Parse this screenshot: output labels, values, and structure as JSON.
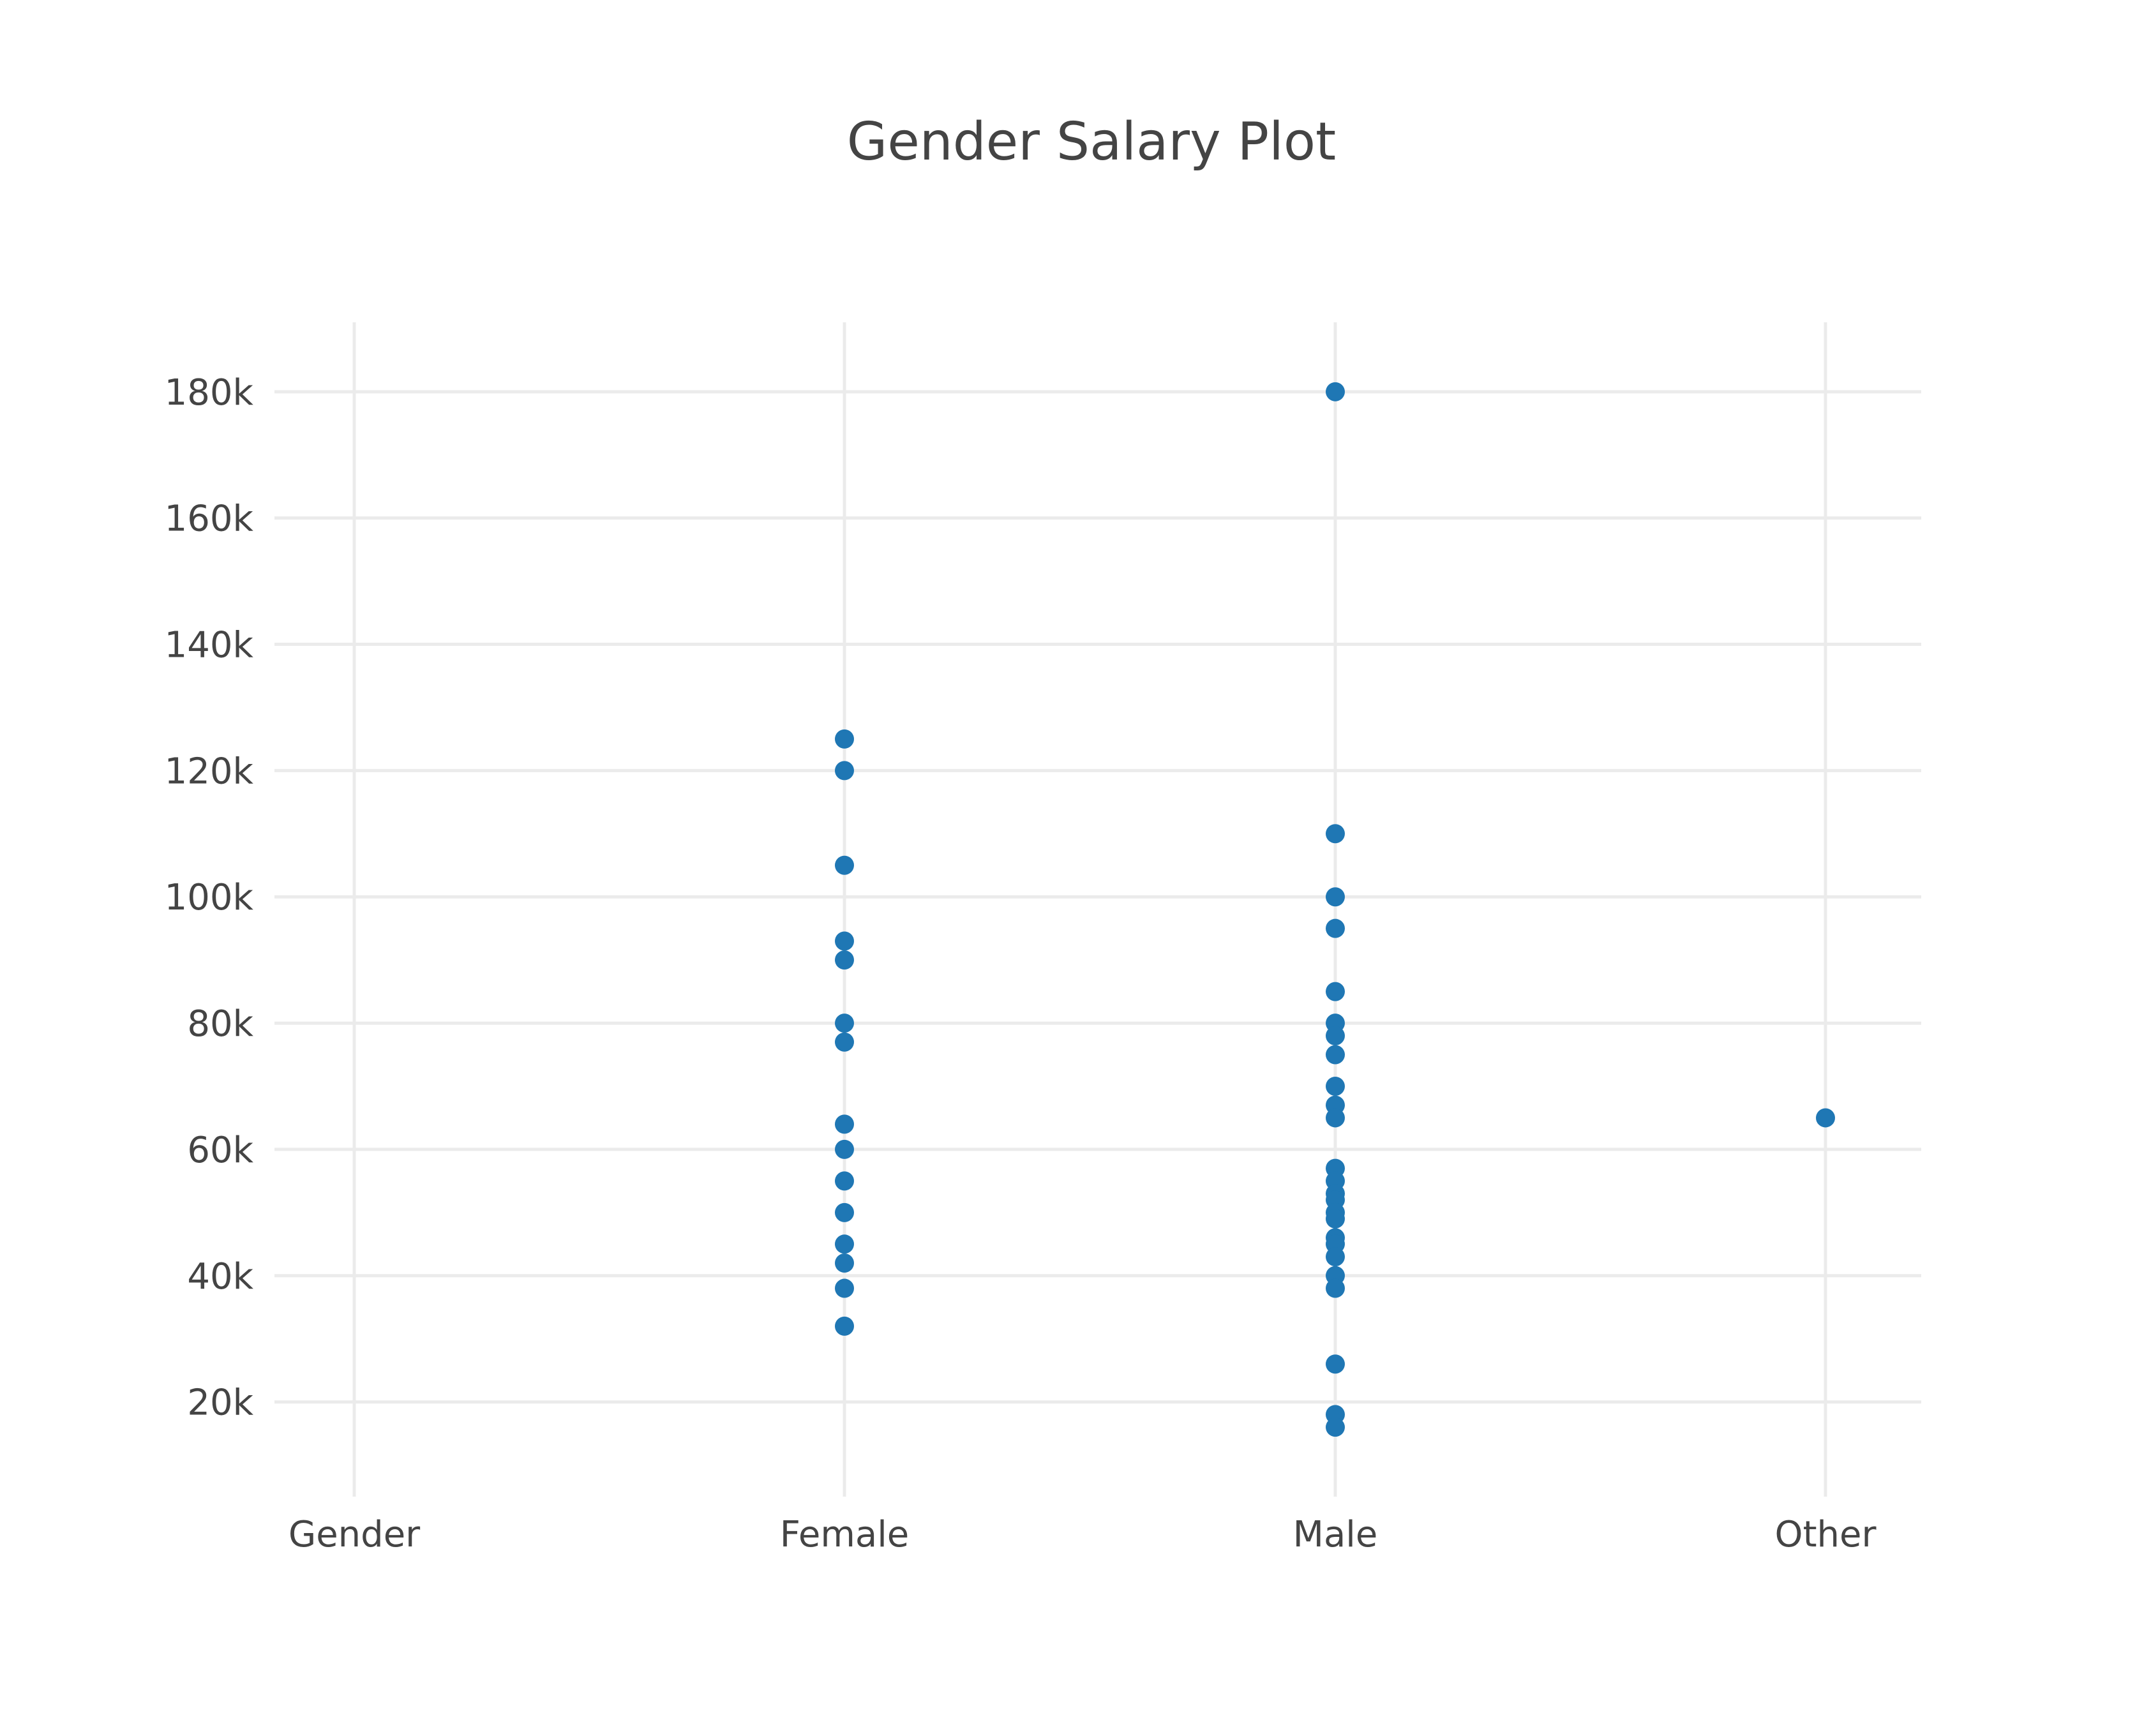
{
  "colors": {
    "marker": "#1f77b4",
    "grid": "#ebebeb",
    "text": "#444444",
    "background": "#ffffff"
  },
  "chart_data": {
    "type": "scatter",
    "title": "Gender Salary Plot",
    "xlabel": "",
    "ylabel": "",
    "categories": [
      "Gender",
      "Female",
      "Male",
      "Other"
    ],
    "y_ticks": [
      20000,
      40000,
      60000,
      80000,
      100000,
      120000,
      140000,
      160000,
      180000
    ],
    "y_tick_labels": [
      "20k",
      "40k",
      "60k",
      "80k",
      "100k",
      "120k",
      "140k",
      "160k",
      "180k"
    ],
    "ylim": [
      5000,
      191000
    ],
    "grid": true,
    "legend": "none",
    "series": [
      {
        "points": [
          {
            "x": "Female",
            "y": 125000
          },
          {
            "x": "Female",
            "y": 120000
          },
          {
            "x": "Female",
            "y": 105000
          },
          {
            "x": "Female",
            "y": 93000
          },
          {
            "x": "Female",
            "y": 90000
          },
          {
            "x": "Female",
            "y": 80000
          },
          {
            "x": "Female",
            "y": 77000
          },
          {
            "x": "Female",
            "y": 64000
          },
          {
            "x": "Female",
            "y": 60000
          },
          {
            "x": "Female",
            "y": 55000
          },
          {
            "x": "Female",
            "y": 50000
          },
          {
            "x": "Female",
            "y": 45000
          },
          {
            "x": "Female",
            "y": 42000
          },
          {
            "x": "Female",
            "y": 38000
          },
          {
            "x": "Female",
            "y": 32000
          },
          {
            "x": "Male",
            "y": 180000
          },
          {
            "x": "Male",
            "y": 110000
          },
          {
            "x": "Male",
            "y": 100000
          },
          {
            "x": "Male",
            "y": 95000
          },
          {
            "x": "Male",
            "y": 85000
          },
          {
            "x": "Male",
            "y": 80000
          },
          {
            "x": "Male",
            "y": 78000
          },
          {
            "x": "Male",
            "y": 75000
          },
          {
            "x": "Male",
            "y": 70000
          },
          {
            "x": "Male",
            "y": 67000
          },
          {
            "x": "Male",
            "y": 65000
          },
          {
            "x": "Male",
            "y": 57000
          },
          {
            "x": "Male",
            "y": 55000
          },
          {
            "x": "Male",
            "y": 53000
          },
          {
            "x": "Male",
            "y": 52000
          },
          {
            "x": "Male",
            "y": 50000
          },
          {
            "x": "Male",
            "y": 49000
          },
          {
            "x": "Male",
            "y": 46000
          },
          {
            "x": "Male",
            "y": 45000
          },
          {
            "x": "Male",
            "y": 43000
          },
          {
            "x": "Male",
            "y": 40000
          },
          {
            "x": "Male",
            "y": 38000
          },
          {
            "x": "Male",
            "y": 26000
          },
          {
            "x": "Male",
            "y": 18000
          },
          {
            "x": "Male",
            "y": 16000
          },
          {
            "x": "Other",
            "y": 65000
          }
        ]
      }
    ]
  }
}
